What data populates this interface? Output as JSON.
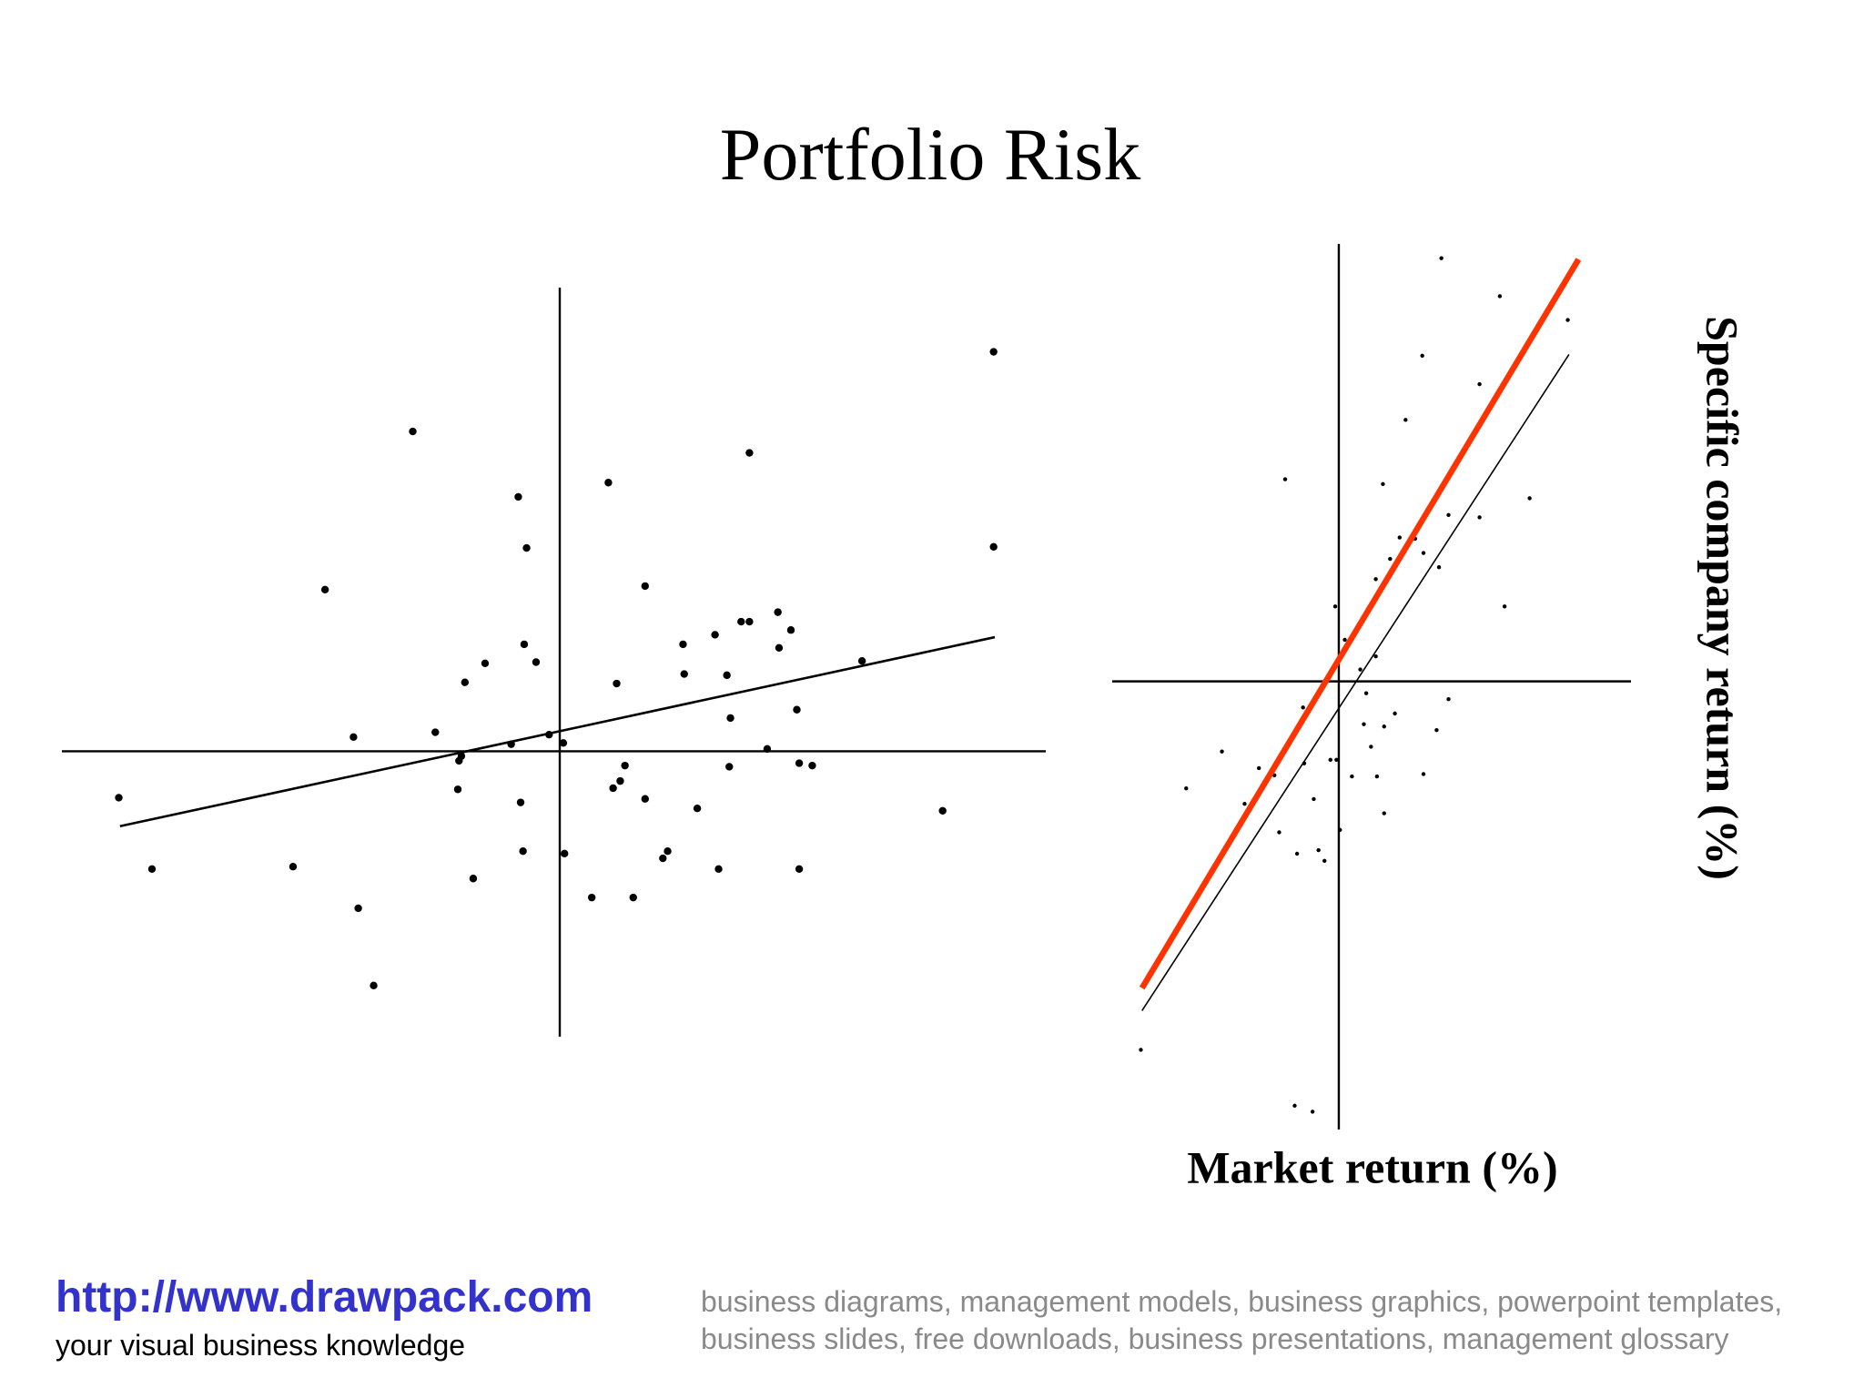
{
  "title": "Portfolio Risk",
  "chart_data": [
    {
      "type": "scatter",
      "color": "#000000",
      "xlim": [
        -42,
        41
      ],
      "ylim": [
        -24,
        39
      ],
      "x": [
        36.6,
        -12.4,
        16,
        -3.5,
        4.1,
        -2.8,
        36.6,
        -19.8,
        7.2,
        18.4,
        15.3,
        16,
        19.5,
        13.1,
        10.4,
        18.5,
        -3,
        -2,
        -6.3,
        25.5,
        10.5,
        14.1,
        -8,
        4.8,
        20,
        14.4,
        -10.5,
        -17.4,
        -0.9,
        0.3,
        -4.1,
        -8.3,
        -8.5,
        17.5,
        5.5,
        14.3,
        20.2,
        21.3,
        5.1,
        4.5,
        -8.6,
        -37.2,
        7.2,
        -3.3,
        11.6,
        32.3,
        -3.1,
        0.4,
        9.1,
        8.7,
        -22.5,
        -34.4,
        13.4,
        20.2,
        -7.3,
        2.7,
        6.2,
        -17,
        -15.7
      ],
      "values": [
        33.6,
        26.9,
        25.1,
        21.4,
        22.6,
        17.1,
        17.2,
        13.6,
        13.9,
        11.7,
        10.9,
        10.9,
        10.2,
        9.8,
        9,
        8.7,
        9,
        7.5,
        7.4,
        7.6,
        6.5,
        6.4,
        5.8,
        5.7,
        3.5,
        2.8,
        1.6,
        1.2,
        1.4,
        0.7,
        0.6,
        -0.4,
        -0.8,
        0.2,
        -1.2,
        -1.3,
        -1,
        -1.2,
        -2.5,
        -3.1,
        -3.2,
        -3.9,
        -4,
        -4.3,
        -4.8,
        -5,
        -8.4,
        -8.6,
        -8.4,
        -9,
        -9.7,
        -9.9,
        -9.9,
        -9.9,
        -10.7,
        -12.3,
        -12.3,
        -13.2,
        -19.7
      ],
      "lines": [
        {
          "color": "#000000",
          "x": [
            -37.1,
            36.7
          ],
          "values": [
            -6.3,
            9.6
          ]
        }
      ]
    },
    {
      "type": "scatter",
      "color": "#000000",
      "xlim": [
        -19,
        24.5
      ],
      "ylim": [
        -37.7,
        36.8
      ],
      "x_label": "Market return (%)",
      "y_label": "Specific company return (%)",
      "x": [
        8.6,
        13.5,
        19.2,
        7,
        11.8,
        5.6,
        -4.5,
        3.7,
        16,
        9.2,
        11.8,
        5.1,
        6.4,
        7.1,
        4.3,
        8.4,
        3.1,
        13.9,
        -0.3,
        0.5,
        3.1,
        1.8,
        2.3,
        9.2,
        -3,
        4.7,
        2.1,
        3.8,
        8.2,
        2.7,
        -9.8,
        -2.9,
        -0.7,
        -0.2,
        -6.7,
        -5.4,
        1.1,
        3.2,
        7.1,
        -12.8,
        -2.1,
        -7.9,
        3.8,
        0.1,
        -5,
        -3.5,
        -1.7,
        -1.2,
        -16.6,
        -3.7,
        -2.2
      ],
      "values": [
        35.6,
        32.4,
        30.4,
        27.4,
        25,
        22,
        17,
        16.6,
        15.4,
        14,
        13.8,
        12.1,
        12,
        10.8,
        10.3,
        9.6,
        8.6,
        6.3,
        6.3,
        3.5,
        2.1,
        1,
        -1,
        -1.5,
        -2.2,
        -2.7,
        -3.6,
        -3.8,
        -4.1,
        -5.5,
        -5.9,
        -6.9,
        -6.6,
        -6.6,
        -7.3,
        -7.9,
        -8,
        -8,
        -7.8,
        -9,
        -9.9,
        -10.3,
        -11.1,
        -12.5,
        -12.7,
        -14.5,
        -14.2,
        -15.1,
        -31,
        -35.7,
        -36.2
      ],
      "lines": [
        {
          "color": "#ff3300",
          "x": [
            -16.5,
            20.1
          ],
          "values": [
            -25.8,
            35.5
          ]
        },
        {
          "color": "#000000",
          "x": [
            -16.5,
            19.3
          ],
          "values": [
            -27.7,
            27.5
          ]
        }
      ]
    }
  ],
  "footer": {
    "url": "http://www.drawpack.com",
    "tagline": "your visual business knowledge",
    "keywords": "business diagrams, management models, business graphics, powerpoint templates, business slides, free downloads, business presentations, management glossary"
  }
}
